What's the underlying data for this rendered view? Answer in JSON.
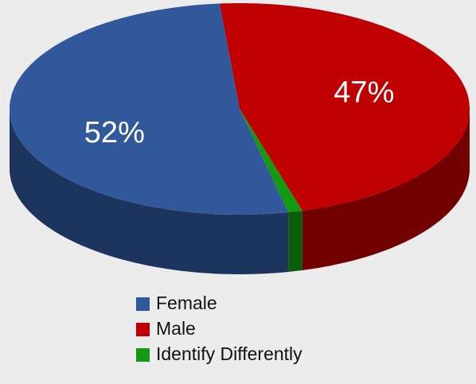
{
  "chart_data": {
    "type": "pie",
    "categories": [
      "Female",
      "Male",
      "Identify Differently"
    ],
    "values": [
      52,
      47,
      1
    ],
    "value_labels": [
      "52%",
      "47%",
      null
    ],
    "colors": [
      "#30589a",
      "#c00000",
      "#139a13"
    ],
    "legend": "bottom"
  }
}
